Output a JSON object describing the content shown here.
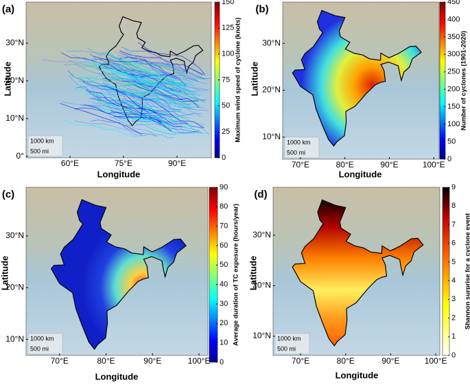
{
  "panels": [
    {
      "label": "(a)",
      "xlabel": "Longitude",
      "ylabel": "Latitude",
      "colorbar_label": "Maximum wind speed of cyclone (knots)",
      "xlim": [
        47.7,
        99.6
      ],
      "ylim": [
        -0.4,
        40.9
      ],
      "xticks": [
        {
          "value": 60,
          "label": "60°E"
        },
        {
          "value": 75,
          "label": "75°E"
        },
        {
          "value": 90,
          "label": "90°E"
        }
      ],
      "yticks": [
        {
          "value": 0,
          "label": "0°"
        },
        {
          "value": 10,
          "label": "10°N"
        },
        {
          "value": 20,
          "label": "20°N"
        },
        {
          "value": 30,
          "label": "30°N"
        }
      ],
      "clim": [
        0,
        150
      ],
      "cticks": [
        0,
        25,
        50,
        75,
        100,
        125,
        150
      ],
      "colormap": "jet",
      "scalebar": [
        "1000 km",
        "500 mi"
      ]
    },
    {
      "label": "(b)",
      "xlabel": "Longitude",
      "ylabel": "Latitude",
      "colorbar_label": "Number of cyclones (1901-2020)",
      "xlim": [
        66,
        101.2
      ],
      "ylim": [
        5.3,
        38.8
      ],
      "xticks": [
        {
          "value": 70,
          "label": "70°E"
        },
        {
          "value": 80,
          "label": "80°E"
        },
        {
          "value": 90,
          "label": "90°E"
        },
        {
          "value": 100,
          "label": "100°E"
        }
      ],
      "yticks": [
        {
          "value": 10,
          "label": "10°N"
        },
        {
          "value": 20,
          "label": "20°N"
        },
        {
          "value": 30,
          "label": "30°N"
        }
      ],
      "clim": [
        0,
        450
      ],
      "cticks": [
        0,
        50,
        100,
        150,
        200,
        250,
        300,
        350,
        400,
        450
      ],
      "colormap": "jet",
      "scalebar": [
        "1000 km",
        "500 mi"
      ]
    },
    {
      "label": "(c)",
      "xlabel": "Longitude",
      "ylabel": "Latitude",
      "colorbar_label": "Average duration of TC exposure (hours/year)",
      "xlim": [
        62.8,
        101.9
      ],
      "ylim": [
        6.9,
        39.4
      ],
      "xticks": [
        {
          "value": 70,
          "label": "70°E"
        },
        {
          "value": 80,
          "label": "80°E"
        },
        {
          "value": 90,
          "label": "90°E"
        },
        {
          "value": 100,
          "label": "100°E"
        }
      ],
      "yticks": [
        {
          "value": 10,
          "label": "10°N"
        },
        {
          "value": 20,
          "label": "20°N"
        },
        {
          "value": 30,
          "label": "30°N"
        }
      ],
      "clim": [
        0,
        90
      ],
      "cticks": [
        0,
        10,
        20,
        30,
        40,
        50,
        60,
        70,
        80,
        90
      ],
      "colormap": "jet",
      "scalebar": [
        "1000 km",
        "500 mi"
      ]
    },
    {
      "label": "(d)",
      "xlabel": "Longitude",
      "ylabel": "Latitude",
      "colorbar_label": "Shannon surprise for a cyclone event",
      "xlim": [
        63.9,
        100.9
      ],
      "ylim": [
        6.2,
        39.5
      ],
      "xticks": [
        {
          "value": 70,
          "label": "70°E"
        },
        {
          "value": 80,
          "label": "80°E"
        },
        {
          "value": 90,
          "label": "90°E"
        },
        {
          "value": 100,
          "label": "100°E"
        }
      ],
      "yticks": [
        {
          "value": 10,
          "label": "10°N"
        },
        {
          "value": 20,
          "label": "20°N"
        },
        {
          "value": 30,
          "label": "30°N"
        }
      ],
      "clim": [
        0,
        9
      ],
      "cticks": [
        0,
        1,
        2,
        3,
        4,
        5,
        6,
        7,
        8,
        9
      ],
      "colormap": "hot_r",
      "scalebar": [
        "1000 km",
        "500 mi"
      ]
    }
  ]
}
